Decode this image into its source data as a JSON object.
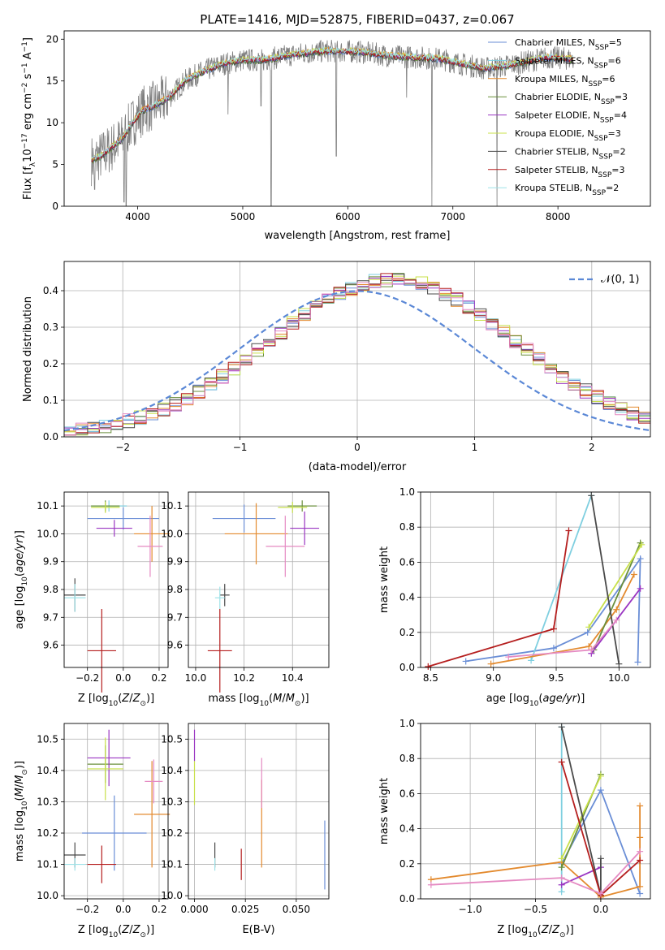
{
  "page_title": "PLATE=1416, MJD=52875, FIBERID=0437, z=0.067",
  "colors": {
    "Chabrier MILES": "#6a8ed6",
    "Salpeter MILES": "#7fcfe0",
    "Kroupa MILES": "#e38a2e",
    "Chabrier ELODIE": "#6a8f3c",
    "Salpeter ELODIE": "#9a35c2",
    "Kroupa ELODIE": "#c8e04a",
    "Chabrier STELIB": "#4a4a4a",
    "Salpeter STELIB": "#b51e1e",
    "Kroupa STELIB": "#9ee2e8",
    "data": "#7f7f7f",
    "pink": "#e58ac2",
    "normal_curve": "#5b88d6"
  },
  "chart_data": [
    {
      "id": "spectrum",
      "type": "line",
      "title": "PLATE=1416, MJD=52875, FIBERID=0437, z=0.067",
      "xlabel": "wavelength [Angstrom, rest frame]",
      "ylabel": "Flux [f_λ 10^-17 erg cm^-2 s^-1 A^-1]",
      "xlim": [
        3300,
        8880
      ],
      "ylim": [
        0,
        21
      ],
      "xticks": [
        4000,
        5000,
        6000,
        7000,
        8000
      ],
      "yticks": [
        0,
        5,
        10,
        15,
        20
      ],
      "continuum": [
        [
          3560,
          5.5
        ],
        [
          3650,
          6
        ],
        [
          3750,
          7
        ],
        [
          3850,
          8
        ],
        [
          3950,
          10
        ],
        [
          4050,
          11.5
        ],
        [
          4150,
          12
        ],
        [
          4300,
          13
        ],
        [
          4450,
          15
        ],
        [
          4600,
          16
        ],
        [
          4800,
          17
        ],
        [
          5000,
          17.5
        ],
        [
          5200,
          17.5
        ],
        [
          5500,
          18.2
        ],
        [
          5800,
          18.6
        ],
        [
          6100,
          18.5
        ],
        [
          6400,
          18
        ],
        [
          6700,
          17.8
        ],
        [
          6900,
          17.6
        ],
        [
          7100,
          17
        ],
        [
          7300,
          16.5
        ],
        [
          7500,
          16.8
        ],
        [
          7700,
          17.3
        ],
        [
          7900,
          17.8
        ],
        [
          8050,
          17.7
        ],
        [
          8150,
          17.6
        ]
      ],
      "noise_amplitude": 1.4,
      "absorption_features": [
        [
          3590,
          2
        ],
        [
          3870,
          0.5
        ],
        [
          3890,
          0
        ],
        [
          4860,
          11
        ],
        [
          5175,
          12
        ],
        [
          5270,
          0
        ],
        [
          5890,
          6
        ],
        [
          6560,
          13
        ],
        [
          6800,
          0
        ],
        [
          7420,
          0
        ]
      ],
      "legend": [
        {
          "name": "Chabrier MILES",
          "label_main": "Chabrier MILES, N",
          "label_sub": "SSP",
          "label_tail": "=5"
        },
        {
          "name": "Salpeter MILES",
          "label_main": "Salpeter MILES, N",
          "label_sub": "SSP",
          "label_tail": "=6"
        },
        {
          "name": "Kroupa MILES",
          "label_main": "Kroupa MILES, N",
          "label_sub": "SSP",
          "label_tail": "=6"
        },
        {
          "name": "Chabrier ELODIE",
          "label_main": "Chabrier ELODIE, N",
          "label_sub": "SSP",
          "label_tail": "=3"
        },
        {
          "name": "Salpeter ELODIE",
          "label_main": "Salpeter ELODIE, N",
          "label_sub": "SSP",
          "label_tail": "=4"
        },
        {
          "name": "Kroupa ELODIE",
          "label_main": "Kroupa ELODIE, N",
          "label_sub": "SSP",
          "label_tail": "=3"
        },
        {
          "name": "Chabrier STELIB",
          "label_main": "Chabrier STELIB, N",
          "label_sub": "SSP",
          "label_tail": "=2"
        },
        {
          "name": "Salpeter STELIB",
          "label_main": "Salpeter STELIB, N",
          "label_sub": "SSP",
          "label_tail": "=3"
        },
        {
          "name": "Kroupa STELIB",
          "label_main": "Kroupa STELIB, N",
          "label_sub": "SSP",
          "label_tail": "=2"
        }
      ],
      "legend_position": "upper-right"
    },
    {
      "id": "residuals",
      "type": "line",
      "xlabel": "(data-model)/error",
      "ylabel": "Normed distribution",
      "xlim": [
        -2.5,
        2.5
      ],
      "ylim": [
        0,
        0.48
      ],
      "xticks": [
        -2,
        -1,
        0,
        1,
        2
      ],
      "yticks": [
        0.0,
        0.1,
        0.2,
        0.3,
        0.4
      ],
      "grid": true,
      "normal_curve_label": "𝒩(0, 1)",
      "normal_mean": 0,
      "normal_sigma": 1,
      "histogram_shape": {
        "center": 0.3,
        "peak": 0.43,
        "bin_width": 0.1,
        "jitter": 0.02
      }
    },
    {
      "id": "age_vs_Z",
      "type": "scatter",
      "xlabel": "Z [log10(Z/Z⊙)]",
      "ylabel": "age [log10(age/yr)]",
      "xlim": [
        -0.33,
        0.25
      ],
      "ylim": [
        9.52,
        10.15
      ],
      "xticks": [
        -0.2,
        0.0,
        0.2
      ],
      "yticks": [
        9.6,
        9.7,
        9.8,
        9.9,
        10.0,
        10.1
      ],
      "grid": true,
      "points": [
        {
          "series": "Chabrier MILES",
          "x": 0.0,
          "y": 10.055,
          "xerr": 0.2,
          "yerr": 0.04
        },
        {
          "series": "Salpeter MILES",
          "x": -0.08,
          "y": 10.1,
          "xerr": 0.1,
          "yerr": 0.02
        },
        {
          "series": "Kroupa MILES",
          "x": 0.16,
          "y": 10.0,
          "xerr": 0.1,
          "yerr": 0.1
        },
        {
          "series": "Chabrier ELODIE",
          "x": -0.1,
          "y": 10.1,
          "xerr": 0.08,
          "yerr": 0.02
        },
        {
          "series": "Salpeter ELODIE",
          "x": -0.05,
          "y": 10.02,
          "xerr": 0.1,
          "yerr": 0.03
        },
        {
          "series": "Kroupa ELODIE",
          "x": -0.1,
          "y": 10.095,
          "xerr": 0.08,
          "yerr": 0.02
        },
        {
          "series": "Chabrier STELIB",
          "x": -0.27,
          "y": 9.78,
          "xerr": 0.06,
          "yerr": 0.06
        },
        {
          "series": "Salpeter STELIB",
          "x": -0.12,
          "y": 9.58,
          "xerr": 0.08,
          "yerr": 0.15
        },
        {
          "series": "Kroupa STELIB",
          "x": -0.27,
          "y": 9.77,
          "xerr": 0.06,
          "yerr": 0.05
        },
        {
          "series": "pink",
          "x": 0.15,
          "y": 9.955,
          "xerr": 0.07,
          "yerr": 0.11
        }
      ]
    },
    {
      "id": "age_vs_mass",
      "type": "scatter",
      "xlabel": "mass [log10(M/M⊙)]",
      "ylabel": "",
      "xlim": [
        9.97,
        10.55
      ],
      "ylim": [
        9.52,
        10.15
      ],
      "xticks": [
        10.0,
        10.2,
        10.4
      ],
      "yticks": [
        9.6,
        9.7,
        9.8,
        9.9,
        10.0,
        10.1
      ],
      "grid": true,
      "points": [
        {
          "series": "Chabrier MILES",
          "x": 10.2,
          "y": 10.055,
          "xerr": 0.13,
          "yerr": 0.05
        },
        {
          "series": "Kroupa MILES",
          "x": 10.25,
          "y": 10.0,
          "xerr": 0.13,
          "yerr": 0.11
        },
        {
          "series": "Chabrier ELODIE",
          "x": 10.44,
          "y": 10.1,
          "xerr": 0.06,
          "yerr": 0.02
        },
        {
          "series": "Salpeter ELODIE",
          "x": 10.45,
          "y": 10.02,
          "xerr": 0.06,
          "yerr": 0.06
        },
        {
          "series": "Kroupa ELODIE",
          "x": 10.4,
          "y": 10.095,
          "xerr": 0.06,
          "yerr": 0.02
        },
        {
          "series": "Chabrier STELIB",
          "x": 10.12,
          "y": 9.78,
          "xerr": 0.02,
          "yerr": 0.04
        },
        {
          "series": "Salpeter STELIB",
          "x": 10.1,
          "y": 9.58,
          "xerr": 0.05,
          "yerr": 0.15
        },
        {
          "series": "Kroupa STELIB",
          "x": 10.1,
          "y": 9.77,
          "xerr": 0.02,
          "yerr": 0.04
        },
        {
          "series": "pink",
          "x": 10.37,
          "y": 9.955,
          "xerr": 0.08,
          "yerr": 0.11
        }
      ]
    },
    {
      "id": "weight_vs_age",
      "type": "line",
      "xlabel": "age [log10(age/yr)]",
      "ylabel": "mass weight",
      "xlim": [
        8.42,
        10.25
      ],
      "ylim": [
        0,
        1
      ],
      "xticks": [
        8.5,
        9.0,
        9.5,
        10.0
      ],
      "yticks": [
        0.0,
        0.2,
        0.4,
        0.6,
        0.8,
        1.0
      ],
      "grid": true,
      "series": [
        {
          "name": "Chabrier MILES",
          "x": [
            8.78,
            9.48,
            9.75,
            10.17,
            10.15
          ],
          "y": [
            0.035,
            0.11,
            0.2,
            0.62,
            0.03
          ]
        },
        {
          "name": "Salpeter MILES",
          "x": [
            9.3,
            9.78
          ],
          "y": [
            0.04,
            0.98
          ]
        },
        {
          "name": "Kroupa MILES",
          "x": [
            8.98,
            9.76,
            9.98,
            10.12
          ],
          "y": [
            0.02,
            0.12,
            0.33,
            0.53
          ]
        },
        {
          "name": "Chabrier ELODIE",
          "x": [
            9.8,
            10.17
          ],
          "y": [
            0.1,
            0.71
          ]
        },
        {
          "name": "Salpeter ELODIE",
          "x": [
            9.78,
            10.17
          ],
          "y": [
            0.08,
            0.45
          ]
        },
        {
          "name": "Kroupa ELODIE",
          "x": [
            9.76,
            10.18
          ],
          "y": [
            0.23,
            0.7
          ]
        },
        {
          "name": "Chabrier STELIB",
          "x": [
            9.78,
            10.0
          ],
          "y": [
            0.98,
            0.02
          ]
        },
        {
          "name": "Salpeter STELIB",
          "x": [
            8.48,
            9.48,
            9.6
          ],
          "y": [
            0.005,
            0.22,
            0.78
          ]
        },
        {
          "name": "pink",
          "x": [
            9.12,
            9.78,
            9.98
          ],
          "y": [
            0.06,
            0.1,
            0.27
          ]
        }
      ]
    },
    {
      "id": "mass_vs_Z",
      "type": "scatter",
      "xlabel": "Z [log10(Z/Z⊙)]",
      "ylabel": "mass [log10(M/M⊙)]",
      "xlim": [
        -0.33,
        0.25
      ],
      "ylim": [
        9.99,
        10.55
      ],
      "xticks": [
        -0.2,
        0.0,
        0.2
      ],
      "yticks": [
        10.0,
        10.1,
        10.2,
        10.3,
        10.4,
        10.5
      ],
      "grid": true,
      "points": [
        {
          "series": "Chabrier MILES",
          "x": -0.05,
          "y": 10.2,
          "xerr": 0.18,
          "yerr": 0.12
        },
        {
          "series": "Kroupa MILES",
          "x": 0.16,
          "y": 10.26,
          "xerr": 0.1,
          "yerr": 0.17
        },
        {
          "series": "Chabrier ELODIE",
          "x": -0.1,
          "y": 10.42,
          "xerr": 0.1,
          "yerr": 0.06
        },
        {
          "series": "Salpeter ELODIE",
          "x": -0.08,
          "y": 10.44,
          "xerr": 0.12,
          "yerr": 0.09
        },
        {
          "series": "Kroupa ELODIE",
          "x": -0.1,
          "y": 10.405,
          "xerr": 0.1,
          "yerr": 0.1
        },
        {
          "series": "Chabrier STELIB",
          "x": -0.27,
          "y": 10.13,
          "xerr": 0.06,
          "yerr": 0.04
        },
        {
          "series": "Salpeter STELIB",
          "x": -0.12,
          "y": 10.1,
          "xerr": 0.08,
          "yerr": 0.06
        },
        {
          "series": "Kroupa STELIB",
          "x": -0.27,
          "y": 10.1,
          "xerr": 0.06,
          "yerr": 0.02
        },
        {
          "series": "pink",
          "x": 0.17,
          "y": 10.365,
          "xerr": 0.05,
          "yerr": 0.07
        }
      ]
    },
    {
      "id": "mass_vs_ebv",
      "type": "scatter",
      "xlabel": "E(B-V)",
      "ylabel": "",
      "xlim": [
        -0.003,
        0.066
      ],
      "ylim": [
        9.99,
        10.55
      ],
      "xticks": [
        0.0,
        0.025,
        0.05
      ],
      "ytick_labels_x": [
        "0.000",
        "0.025",
        "0.050"
      ],
      "yticks": [
        10.0,
        10.1,
        10.2,
        10.3,
        10.4,
        10.5
      ],
      "grid": true,
      "points": [
        {
          "series": "Chabrier MILES",
          "x": 0.064,
          "y": 10.13,
          "xerr": 0,
          "yerr": 0.11
        },
        {
          "series": "Kroupa MILES",
          "x": 0.033,
          "y": 10.23,
          "xerr": 0,
          "yerr": 0.14
        },
        {
          "series": "Salpeter ELODIE",
          "x": 0.0,
          "y": 10.48,
          "xerr": 0,
          "yerr": 0.05
        },
        {
          "series": "Kroupa ELODIE",
          "x": 0.0,
          "y": 10.36,
          "xerr": 0,
          "yerr": 0.07
        },
        {
          "series": "Chabrier STELIB",
          "x": 0.01,
          "y": 10.13,
          "xerr": 0,
          "yerr": 0.04
        },
        {
          "series": "Salpeter STELIB",
          "x": 0.023,
          "y": 10.1,
          "xerr": 0,
          "yerr": 0.05
        },
        {
          "series": "Kroupa STELIB",
          "x": 0.01,
          "y": 10.1,
          "xerr": 0,
          "yerr": 0.02
        },
        {
          "series": "pink",
          "x": 0.033,
          "y": 10.36,
          "xerr": 0,
          "yerr": 0.08
        }
      ]
    },
    {
      "id": "weight_vs_Z",
      "type": "line",
      "xlabel": "Z [log10(Z/Z⊙)]",
      "ylabel": "mass weight",
      "xlim": [
        -1.38,
        0.38
      ],
      "ylim": [
        0,
        1
      ],
      "xticks": [
        -1.0,
        -0.5,
        0.0
      ],
      "yticks": [
        0.0,
        0.2,
        0.4,
        0.6,
        0.8,
        1.0
      ],
      "grid": true,
      "series": [
        {
          "name": "Chabrier MILES",
          "x": [
            -0.3,
            0.0,
            0.3
          ],
          "y": [
            0.2,
            0.62,
            0.03
          ]
        },
        {
          "name": "Salpeter MILES",
          "x": [
            -0.3,
            -0.3
          ],
          "y": [
            0.04,
            0.98
          ]
        },
        {
          "name": "Kroupa MILES",
          "x": [
            -1.3,
            -0.3,
            0.0,
            0.3,
            0.3,
            0.3
          ],
          "y": [
            0.11,
            0.21,
            0.01,
            0.07,
            0.35,
            0.53
          ]
        },
        {
          "name": "Chabrier ELODIE",
          "x": [
            -0.3,
            0.0
          ],
          "y": [
            0.18,
            0.71
          ]
        },
        {
          "name": "Salpeter ELODIE",
          "x": [
            -0.3,
            0.0
          ],
          "y": [
            0.08,
            0.18
          ]
        },
        {
          "name": "Kroupa ELODIE",
          "x": [
            -0.3,
            0.0
          ],
          "y": [
            0.23,
            0.7
          ]
        },
        {
          "name": "Chabrier STELIB",
          "x": [
            -0.3,
            0.0,
            0.0
          ],
          "y": [
            0.98,
            0.02,
            0.23
          ]
        },
        {
          "name": "Salpeter STELIB",
          "x": [
            -0.3,
            0.0,
            0.3
          ],
          "y": [
            0.78,
            0.02,
            0.22
          ]
        },
        {
          "name": "pink",
          "x": [
            -1.3,
            -0.3,
            0.0,
            0.3
          ],
          "y": [
            0.08,
            0.12,
            0.03,
            0.27
          ]
        }
      ]
    }
  ]
}
